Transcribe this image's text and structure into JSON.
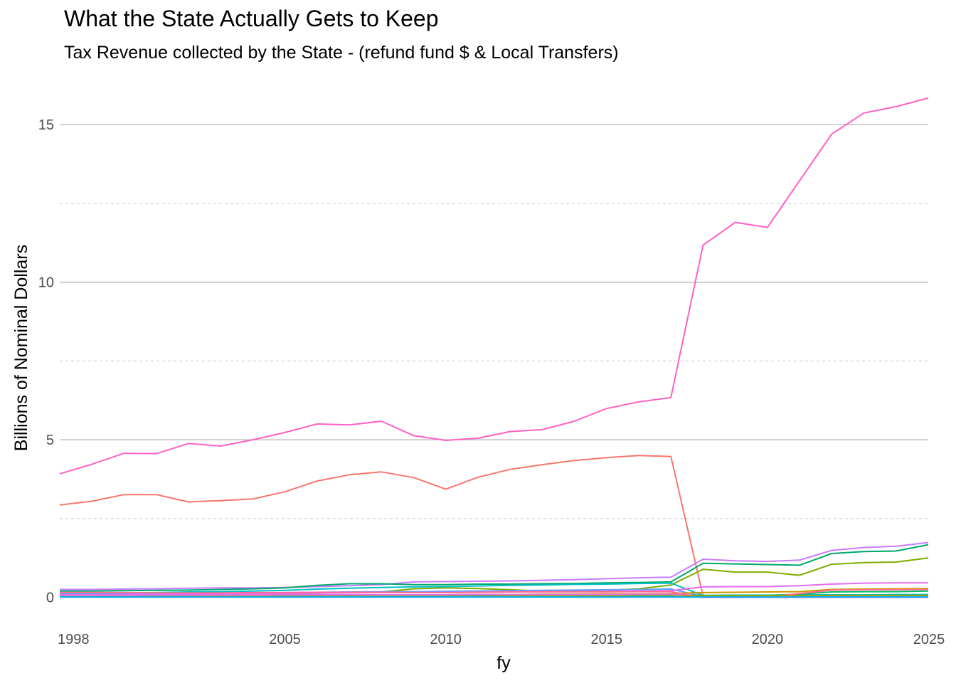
{
  "chart_data": {
    "type": "line",
    "title": "What the State Actually Gets to Keep",
    "subtitle": "Tax Revenue collected by the State - (refund fund $ & Local Transfers)",
    "xlabel": "fy",
    "ylabel": "Billions of Nominal Dollars",
    "xlim": [
      1998,
      2025
    ],
    "ylim": [
      -0.8,
      16.2
    ],
    "x_ticks": [
      1998,
      2005,
      2010,
      2015,
      2020,
      2025
    ],
    "y_ticks": [
      0,
      5,
      10,
      15
    ],
    "y_minor_ticks": [
      2.5,
      7.5,
      12.5
    ],
    "grid": true,
    "legend": "none",
    "x": [
      1998,
      1999,
      2000,
      2001,
      2002,
      2003,
      2004,
      2005,
      2006,
      2007,
      2008,
      2009,
      2010,
      2011,
      2012,
      2013,
      2014,
      2015,
      2016,
      2017,
      2018,
      2019,
      2020,
      2021,
      2022,
      2023,
      2024,
      2025
    ],
    "series": [
      {
        "color": "#FF61C3",
        "values": [
          3.92,
          4.22,
          4.57,
          4.56,
          4.88,
          4.8,
          5.0,
          5.23,
          5.5,
          5.47,
          5.59,
          5.13,
          4.98,
          5.05,
          5.26,
          5.32,
          5.59,
          5.99,
          6.2,
          6.34,
          11.18,
          11.9,
          11.74,
          13.22,
          14.7,
          15.37,
          15.57,
          15.84
        ]
      },
      {
        "color": "#F8766D",
        "values": [
          2.93,
          3.05,
          3.26,
          3.26,
          3.03,
          3.07,
          3.12,
          3.35,
          3.69,
          3.89,
          3.98,
          3.8,
          3.43,
          3.81,
          4.06,
          4.21,
          4.34,
          4.43,
          4.5,
          4.47,
          0.04,
          0.04,
          0.04,
          0.04,
          0.04,
          0.04,
          0.04,
          0.04
        ]
      },
      {
        "color": "#C77CFF",
        "values": [
          0.25,
          0.25,
          0.26,
          0.27,
          0.29,
          0.3,
          0.3,
          0.31,
          0.34,
          0.37,
          0.4,
          0.49,
          0.5,
          0.51,
          0.52,
          0.54,
          0.56,
          0.59,
          0.62,
          0.64,
          1.21,
          1.16,
          1.14,
          1.18,
          1.49,
          1.58,
          1.62,
          1.74
        ]
      },
      {
        "color": "#00A86B",
        "values": [
          0.2,
          0.2,
          0.21,
          0.22,
          0.23,
          0.25,
          0.27,
          0.3,
          0.38,
          0.43,
          0.43,
          0.4,
          0.4,
          0.42,
          0.42,
          0.43,
          0.44,
          0.46,
          0.47,
          0.49,
          1.08,
          1.06,
          1.04,
          1.02,
          1.39,
          1.45,
          1.47,
          1.67
        ]
      },
      {
        "color": "#7CAE00",
        "values": [
          0.05,
          0.05,
          0.06,
          0.06,
          0.07,
          0.08,
          0.09,
          0.11,
          0.13,
          0.15,
          0.17,
          0.27,
          0.3,
          0.28,
          0.24,
          0.2,
          0.21,
          0.22,
          0.27,
          0.39,
          0.89,
          0.8,
          0.8,
          0.7,
          1.05,
          1.1,
          1.12,
          1.25
        ]
      },
      {
        "color": "#00BFC4",
        "values": [
          0.12,
          0.13,
          0.14,
          0.15,
          0.17,
          0.18,
          0.2,
          0.22,
          0.26,
          0.29,
          0.31,
          0.33,
          0.34,
          0.36,
          0.38,
          0.39,
          0.41,
          0.42,
          0.44,
          0.45,
          0.06,
          0.07,
          0.07,
          0.08,
          0.08,
          0.08,
          0.09,
          0.09
        ]
      },
      {
        "color": "#619CFF",
        "values": [
          0.1,
          0.1,
          0.11,
          0.12,
          0.12,
          0.13,
          0.14,
          0.15,
          0.16,
          0.17,
          0.18,
          0.18,
          0.19,
          0.2,
          0.21,
          0.22,
          0.23,
          0.24,
          0.25,
          0.26,
          0.03,
          0.03,
          0.03,
          0.03,
          0.03,
          0.03,
          0.03,
          0.03
        ]
      },
      {
        "color": "#E76BF3",
        "values": [
          0.08,
          0.08,
          0.09,
          0.09,
          0.1,
          0.1,
          0.11,
          0.12,
          0.13,
          0.14,
          0.15,
          0.15,
          0.15,
          0.16,
          0.17,
          0.18,
          0.18,
          0.19,
          0.2,
          0.21,
          0.33,
          0.34,
          0.34,
          0.37,
          0.42,
          0.45,
          0.46,
          0.46
        ]
      },
      {
        "color": "#CD9600",
        "values": [
          0.04,
          0.04,
          0.04,
          0.05,
          0.05,
          0.05,
          0.06,
          0.06,
          0.07,
          0.07,
          0.08,
          0.08,
          0.08,
          0.09,
          0.09,
          0.1,
          0.1,
          0.11,
          0.11,
          0.12,
          0.15,
          0.16,
          0.17,
          0.18,
          0.25,
          0.26,
          0.27,
          0.28
        ]
      },
      {
        "color": "#00BE67",
        "values": [
          0.03,
          0.03,
          0.03,
          0.03,
          0.04,
          0.04,
          0.04,
          0.05,
          0.05,
          0.05,
          0.06,
          0.06,
          0.06,
          0.06,
          0.07,
          0.07,
          0.07,
          0.08,
          0.08,
          0.08,
          0.06,
          0.06,
          0.06,
          0.1,
          0.17,
          0.18,
          0.18,
          0.2
        ]
      },
      {
        "color": "#FF6C91",
        "values": [
          0.15,
          0.15,
          0.15,
          0.14,
          0.14,
          0.14,
          0.15,
          0.15,
          0.16,
          0.16,
          0.16,
          0.15,
          0.15,
          0.16,
          0.17,
          0.17,
          0.17,
          0.17,
          0.18,
          0.18,
          0.0,
          0.0,
          0.01,
          0.12,
          0.23,
          0.24,
          0.24,
          0.25
        ]
      },
      {
        "color": "#ED68ED",
        "values": [
          0.06,
          0.06,
          0.06,
          0.07,
          0.07,
          0.07,
          0.07,
          0.08,
          0.08,
          0.08,
          0.08,
          0.08,
          0.08,
          0.09,
          0.09,
          0.09,
          0.09,
          0.09,
          0.1,
          0.1,
          0.0,
          0.0,
          0.0,
          0.0,
          0.0,
          0.0,
          0.0,
          0.0
        ]
      },
      {
        "color": "#A3A500",
        "values": [
          0.02,
          0.02,
          0.02,
          0.02,
          0.02,
          0.03,
          0.03,
          0.03,
          0.03,
          0.03,
          0.03,
          0.03,
          0.03,
          0.03,
          0.04,
          0.04,
          0.04,
          0.04,
          0.04,
          0.04,
          0.05,
          0.05,
          0.05,
          0.05,
          0.06,
          0.06,
          0.06,
          0.06
        ]
      },
      {
        "color": "#00B0F6",
        "values": [
          0.01,
          0.01,
          0.01,
          0.01,
          0.01,
          0.01,
          0.01,
          0.01,
          0.01,
          0.01,
          0.01,
          0.01,
          0.01,
          0.01,
          0.01,
          0.01,
          0.01,
          0.01,
          0.01,
          0.01,
          0.01,
          0.01,
          0.01,
          0.01,
          0.01,
          0.01,
          0.01,
          0.01
        ]
      }
    ]
  }
}
